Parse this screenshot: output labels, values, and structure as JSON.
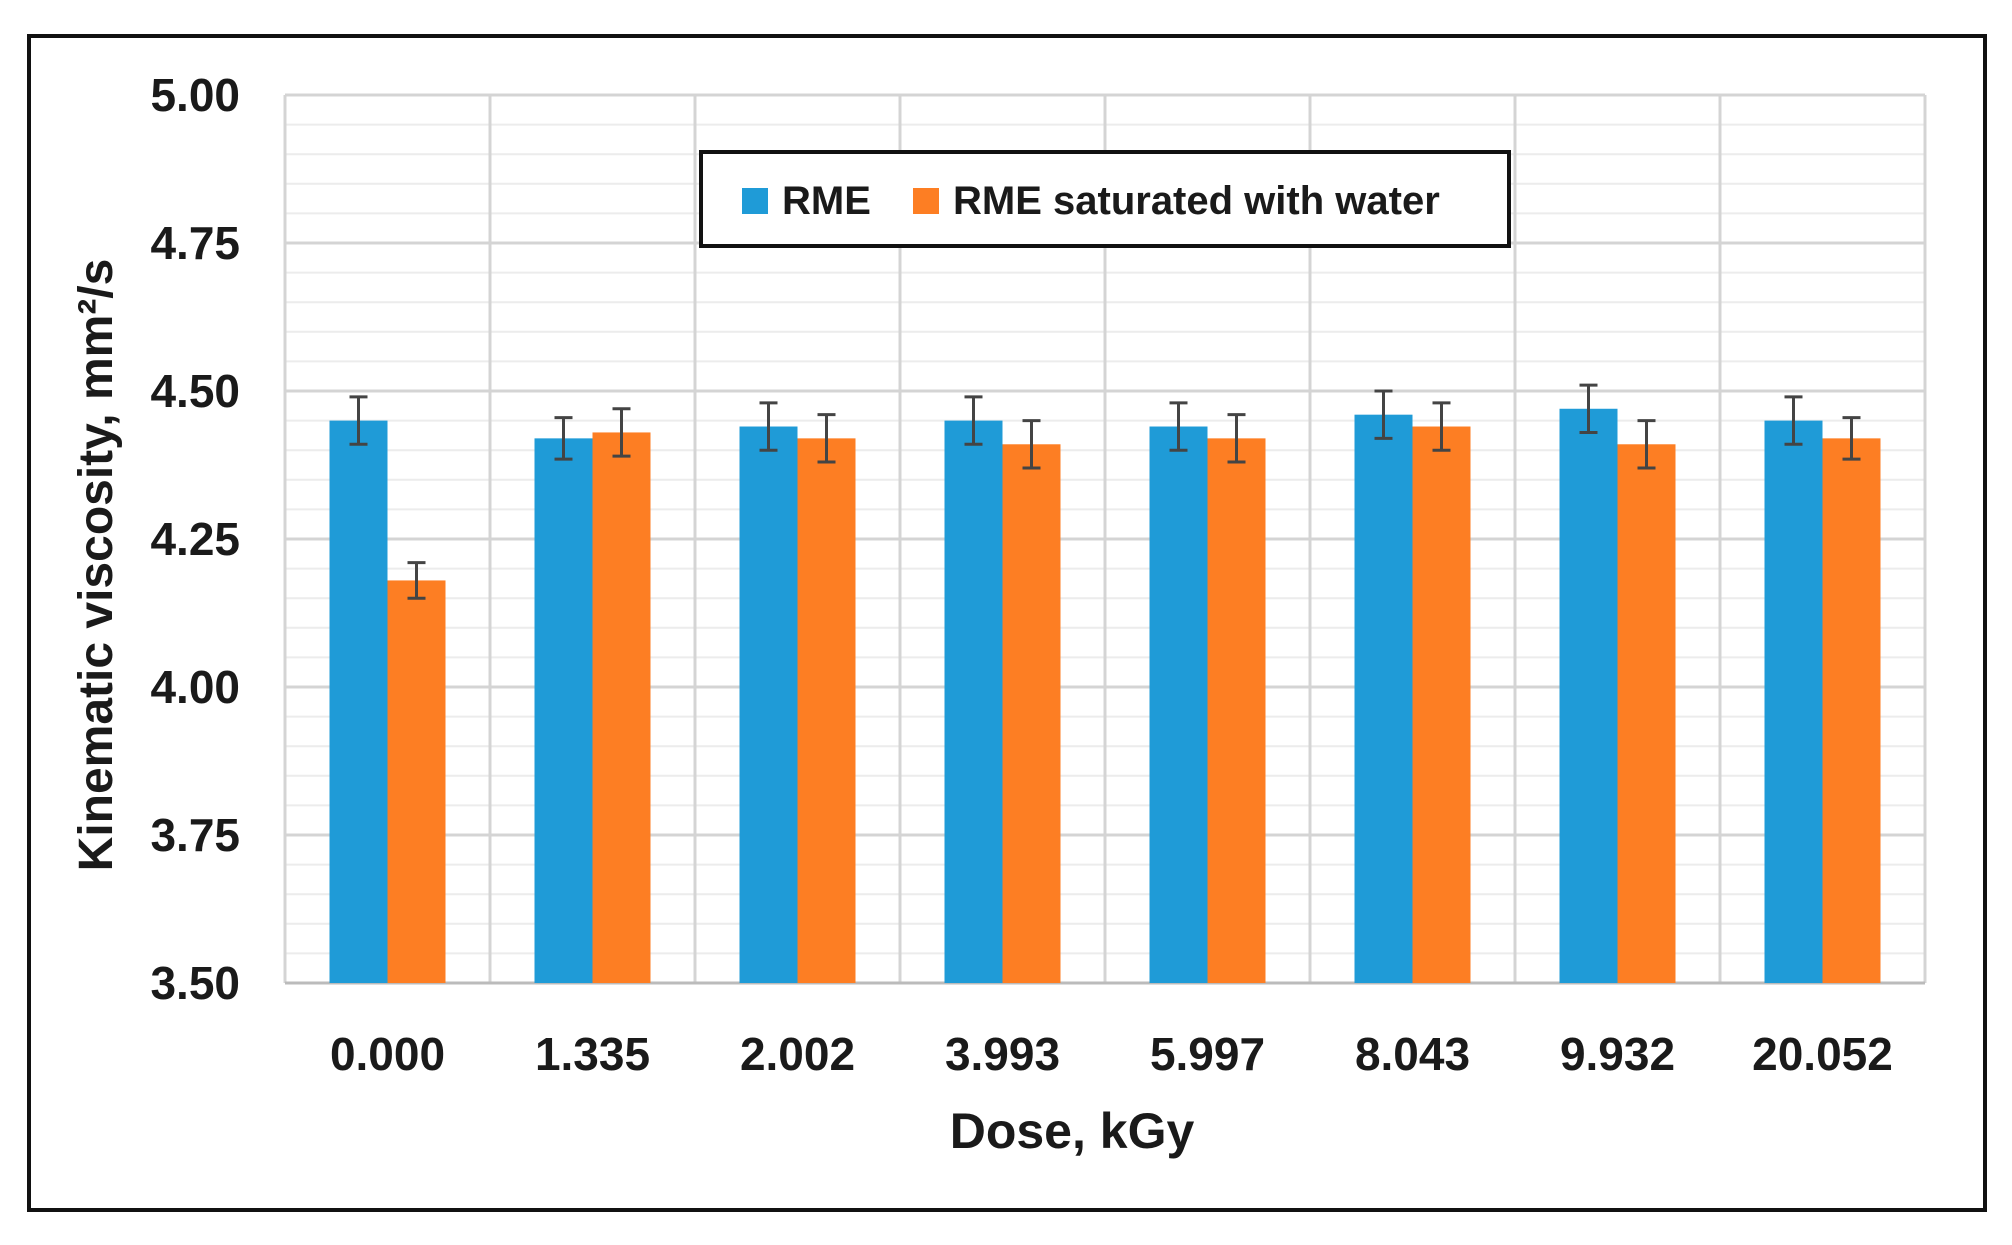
{
  "chart_data": {
    "type": "bar",
    "title": "",
    "xlabel": "Dose, kGy",
    "ylabel": "Kinematic viscosity, mm²/s",
    "categories": [
      "0.000",
      "1.335",
      "2.002",
      "3.993",
      "5.997",
      "8.043",
      "9.932",
      "20.052"
    ],
    "ylim": [
      3.5,
      5.0
    ],
    "yticks": [
      "3.50",
      "3.75",
      "4.00",
      "4.25",
      "4.50",
      "4.75",
      "5.00"
    ],
    "grid": true,
    "legend_position": "top-center",
    "series": [
      {
        "name": "RME",
        "color": "#1f9bd7",
        "values": [
          4.45,
          4.42,
          4.44,
          4.45,
          4.44,
          4.46,
          4.47,
          4.45
        ],
        "errors": [
          0.04,
          0.035,
          0.04,
          0.04,
          0.04,
          0.04,
          0.04,
          0.04
        ]
      },
      {
        "name": "RME saturated with water",
        "color": "#fd7e23",
        "values": [
          4.18,
          4.43,
          4.42,
          4.41,
          4.42,
          4.44,
          4.41,
          4.42
        ],
        "errors": [
          0.03,
          0.04,
          0.04,
          0.04,
          0.04,
          0.04,
          0.04,
          0.035
        ]
      }
    ]
  }
}
